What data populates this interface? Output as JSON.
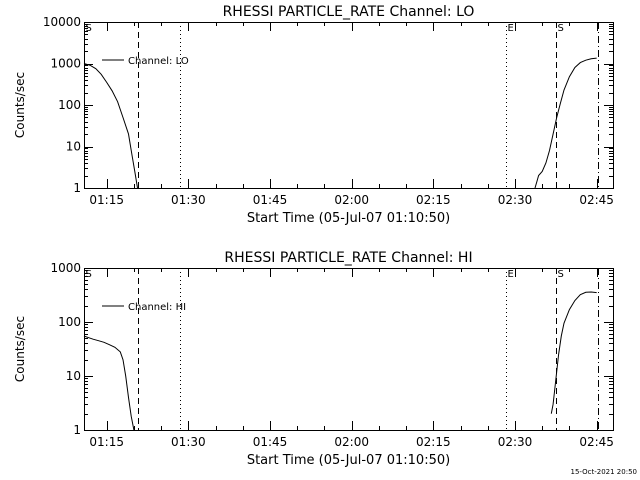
{
  "time_stamp": "15-Oct-2021 20:50",
  "chart_data": [
    {
      "type": "line",
      "title": "RHESSI PARTICLE_RATE Channel: LO",
      "xlabel": "Start Time (05-Jul-07 01:10:50)",
      "ylabel": "Counts/sec",
      "yscale": "log",
      "ylim": [
        1,
        10000
      ],
      "xlim": [
        "01:10:50",
        "02:48:00"
      ],
      "xticks": [
        "01:15",
        "01:30",
        "01:45",
        "02:00",
        "02:15",
        "02:30",
        "02:45"
      ],
      "yticks": [
        "1",
        "10",
        "100",
        "1000",
        "10000"
      ],
      "legend": {
        "label": "Channel: LO",
        "placement": "top-left"
      },
      "markers": [
        {
          "label": "S",
          "time": "01:10:50",
          "style": "none"
        },
        {
          "label": "",
          "time": "01:20:50",
          "style": "dashed"
        },
        {
          "label": "",
          "time": "01:28:30",
          "style": "dotted"
        },
        {
          "label": "E",
          "time": "02:28:20",
          "style": "dotted"
        },
        {
          "label": "S",
          "time": "02:37:30",
          "style": "dashed"
        },
        {
          "label": "",
          "time": "02:45:10",
          "style": "dashdot"
        }
      ],
      "series": [
        {
          "segments": [
            [
              [
                "01:10:50",
                1000
              ],
              [
                "01:12:00",
                900
              ],
              [
                "01:13:00",
                750
              ],
              [
                "01:14:00",
                550
              ],
              [
                "01:15:00",
                350
              ],
              [
                "01:16:00",
                220
              ],
              [
                "01:17:00",
                120
              ],
              [
                "01:18:00",
                50
              ],
              [
                "01:19:00",
                20
              ],
              [
                "01:19:40",
                6
              ],
              [
                "01:20:10",
                2.5
              ],
              [
                "01:20:40",
                1
              ]
            ],
            [
              [
                "02:33:40",
                1
              ],
              [
                "02:34:00",
                1.4
              ],
              [
                "02:34:20",
                2
              ],
              [
                "02:35:00",
                2.5
              ],
              [
                "02:35:40",
                4
              ],
              [
                "02:36:20",
                8
              ],
              [
                "02:37:00",
                20
              ],
              [
                "02:37:40",
                50
              ],
              [
                "02:38:20",
                110
              ],
              [
                "02:39:00",
                230
              ],
              [
                "02:40:00",
                480
              ],
              [
                "02:41:00",
                800
              ],
              [
                "02:42:00",
                1050
              ],
              [
                "02:43:00",
                1200
              ],
              [
                "02:44:00",
                1300
              ],
              [
                "02:45:00",
                1350
              ]
            ]
          ]
        }
      ]
    },
    {
      "type": "line",
      "title": "RHESSI PARTICLE_RATE Channel: HI",
      "xlabel": "Start Time (05-Jul-07 01:10:50)",
      "ylabel": "Counts/sec",
      "yscale": "log",
      "ylim": [
        1,
        1000
      ],
      "xlim": [
        "01:10:50",
        "02:48:00"
      ],
      "xticks": [
        "01:15",
        "01:30",
        "01:45",
        "02:00",
        "02:15",
        "02:30",
        "02:45"
      ],
      "yticks": [
        "1",
        "10",
        "100",
        "1000"
      ],
      "legend": {
        "label": "Channel: HI",
        "placement": "top-left"
      },
      "markers": [
        {
          "label": "S",
          "time": "01:10:50",
          "style": "none"
        },
        {
          "label": "",
          "time": "01:20:50",
          "style": "dashed"
        },
        {
          "label": "",
          "time": "01:28:30",
          "style": "dotted"
        },
        {
          "label": "E",
          "time": "02:28:20",
          "style": "dotted"
        },
        {
          "label": "S",
          "time": "02:37:30",
          "style": "dashed"
        },
        {
          "label": "",
          "time": "02:45:10",
          "style": "dashdot"
        }
      ],
      "series": [
        {
          "segments": [
            [
              [
                "01:10:50",
                55
              ],
              [
                "01:11:30",
                52
              ],
              [
                "01:12:30",
                48
              ],
              [
                "01:13:30",
                45
              ],
              [
                "01:14:30",
                42
              ],
              [
                "01:15:30",
                38
              ],
              [
                "01:16:30",
                34
              ],
              [
                "01:17:30",
                28
              ],
              [
                "01:18:00",
                20
              ],
              [
                "01:18:30",
                10
              ],
              [
                "01:19:00",
                4
              ],
              [
                "01:19:30",
                1.8
              ],
              [
                "01:20:00",
                1
              ]
            ],
            [
              [
                "02:36:40",
                2
              ],
              [
                "02:37:00",
                3
              ],
              [
                "02:37:20",
                6
              ],
              [
                "02:37:40",
                12
              ],
              [
                "02:38:00",
                25
              ],
              [
                "02:38:30",
                55
              ],
              [
                "02:39:00",
                95
              ],
              [
                "02:40:00",
                170
              ],
              [
                "02:41:00",
                250
              ],
              [
                "02:42:00",
                320
              ],
              [
                "02:43:00",
                355
              ],
              [
                "02:44:00",
                360
              ],
              [
                "02:45:00",
                350
              ]
            ]
          ]
        }
      ]
    }
  ]
}
